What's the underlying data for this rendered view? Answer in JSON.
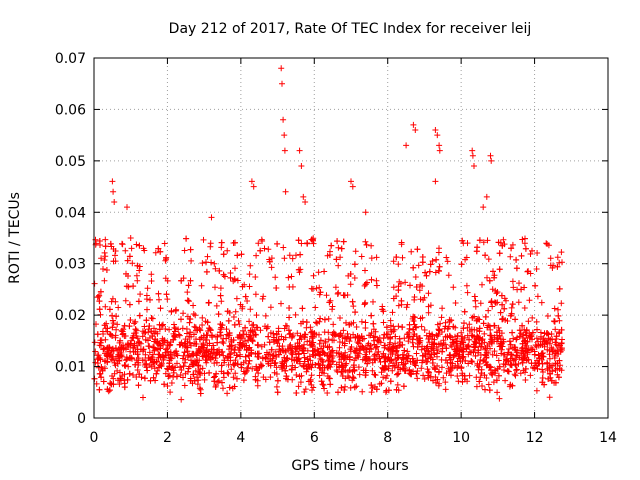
{
  "chart_data": {
    "type": "scatter",
    "title": "Day 212 of 2017, Rate Of TEC Index for receiver leij",
    "xlabel": "GPS time / hours",
    "ylabel": "ROTI / TECUs",
    "xlim": [
      0,
      14
    ],
    "ylim": [
      0,
      0.07
    ],
    "x_ticks": [
      "0",
      "2",
      "4",
      "6",
      "8",
      "10",
      "12",
      "14"
    ],
    "y_ticks": [
      "0",
      "0.01",
      "0.02",
      "0.03",
      "0.04",
      "0.05",
      "0.06",
      "0.07"
    ],
    "grid": true,
    "marker": "+",
    "color": "#ff0000",
    "data_x_range": [
      0,
      12.75
    ],
    "baseline": {
      "median": 0.013,
      "typical_low": 0.005,
      "typical_high": 0.025
    },
    "outliers": [
      {
        "x": 0.5,
        "y": 0.046
      },
      {
        "x": 0.52,
        "y": 0.044
      },
      {
        "x": 0.55,
        "y": 0.042
      },
      {
        "x": 0.9,
        "y": 0.041
      },
      {
        "x": 1.0,
        "y": 0.035
      },
      {
        "x": 3.2,
        "y": 0.039
      },
      {
        "x": 4.3,
        "y": 0.046
      },
      {
        "x": 4.35,
        "y": 0.045
      },
      {
        "x": 5.1,
        "y": 0.068
      },
      {
        "x": 5.12,
        "y": 0.065
      },
      {
        "x": 5.15,
        "y": 0.058
      },
      {
        "x": 5.18,
        "y": 0.055
      },
      {
        "x": 5.2,
        "y": 0.052
      },
      {
        "x": 5.22,
        "y": 0.044
      },
      {
        "x": 5.6,
        "y": 0.052
      },
      {
        "x": 5.65,
        "y": 0.049
      },
      {
        "x": 5.7,
        "y": 0.043
      },
      {
        "x": 5.75,
        "y": 0.042
      },
      {
        "x": 7.0,
        "y": 0.046
      },
      {
        "x": 7.05,
        "y": 0.045
      },
      {
        "x": 7.4,
        "y": 0.04
      },
      {
        "x": 8.5,
        "y": 0.053
      },
      {
        "x": 8.7,
        "y": 0.057
      },
      {
        "x": 8.75,
        "y": 0.056
      },
      {
        "x": 9.3,
        "y": 0.056
      },
      {
        "x": 9.35,
        "y": 0.055
      },
      {
        "x": 9.4,
        "y": 0.053
      },
      {
        "x": 9.42,
        "y": 0.052
      },
      {
        "x": 9.3,
        "y": 0.046
      },
      {
        "x": 10.3,
        "y": 0.052
      },
      {
        "x": 10.32,
        "y": 0.051
      },
      {
        "x": 10.35,
        "y": 0.049
      },
      {
        "x": 10.8,
        "y": 0.051
      },
      {
        "x": 10.82,
        "y": 0.05
      },
      {
        "x": 10.7,
        "y": 0.043
      },
      {
        "x": 10.6,
        "y": 0.041
      }
    ]
  }
}
